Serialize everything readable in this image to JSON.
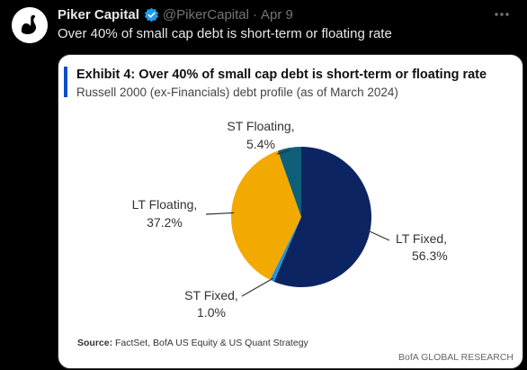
{
  "tweet": {
    "author_name": "Piker Capital",
    "handle": "@PikerCapital",
    "separator": "·",
    "date": "Apr 9",
    "text": "Over 40% of small cap debt is short-term or floating rate"
  },
  "exhibit": {
    "title": "Exhibit 4: Over 40% of small cap debt is short-term or floating rate",
    "subtitle": "Russell 2000 (ex-Financials) debt profile (as of March 2024)",
    "source_label": "Source:",
    "source_text": " FactSet, BofA US Equity & US Quant Strategy",
    "brand": "BofA GLOBAL RESEARCH"
  },
  "colors": {
    "background": "#000000",
    "verified": "#1d9bf0",
    "accent_bar": "#0a4fc9"
  },
  "icons": [
    "swan-avatar",
    "verified-badge-icon",
    "more-options-icon"
  ],
  "chart_data": {
    "type": "pie",
    "title": "Exhibit 4: Over 40% of small cap debt is short-term or floating rate",
    "subtitle": "Russell 2000 (ex-Financials) debt profile (as of March 2024)",
    "start_angle_deg": 0,
    "direction": "clockwise",
    "slices": [
      {
        "label": "LT Fixed",
        "value": 56.3,
        "value_label": "56.3%",
        "color": "#0c2461"
      },
      {
        "label": "ST Fixed",
        "value": 1.0,
        "value_label": "1.0%",
        "color": "#2394d6"
      },
      {
        "label": "LT Floating",
        "value": 37.2,
        "value_label": "37.2%",
        "color": "#f2a900"
      },
      {
        "label": "ST Floating",
        "value": 5.4,
        "value_label": "5.4%",
        "color": "#0e5f77"
      }
    ]
  }
}
